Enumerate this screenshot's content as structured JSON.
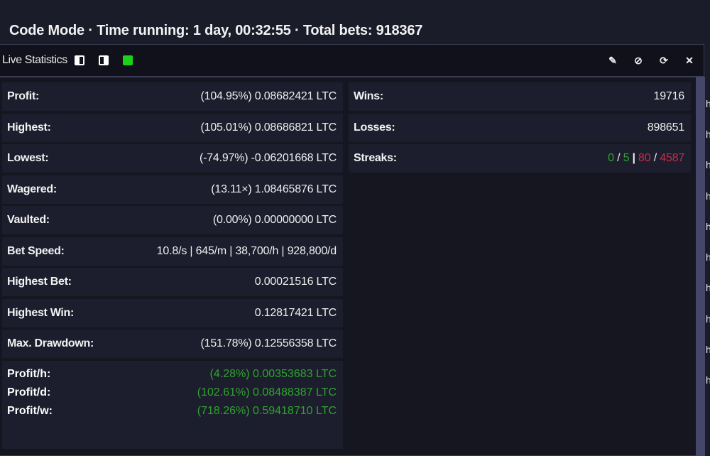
{
  "header": {
    "title": "Code Mode · Time running: 1 day, 00:32:55 · Total bets: 918367"
  },
  "panel": {
    "title": "Live Statistics",
    "icons": [
      "dock-left-icon",
      "dock-right-icon",
      "status-green-icon"
    ],
    "tools": [
      "edit-icon",
      "hide-icon",
      "refresh-icon",
      "close-icon"
    ],
    "accent_green": "#1bd21b"
  },
  "left_rows": [
    {
      "label": "Profit:",
      "value": "(104.95%) 0.08682421 LTC",
      "color": "green"
    },
    {
      "label": "Highest:",
      "value": "(105.01%) 0.08686821 LTC",
      "color": "green"
    },
    {
      "label": "Lowest:",
      "value": "(-74.97%) -0.06201668 LTC",
      "color": "red"
    },
    {
      "label": "Wagered:",
      "value": "(13.11×) 1.08465876 LTC",
      "color": "white"
    },
    {
      "label": "Vaulted:",
      "value": "(0.00%) 0.00000000 LTC",
      "color": "white"
    },
    {
      "label": "Bet Speed:",
      "value": "10.8/s | 645/m | 38,700/h | 928,800/d",
      "color": "white"
    },
    {
      "label": "Highest Bet:",
      "value": "0.00021516 LTC",
      "color": "white"
    },
    {
      "label": "Highest Win:",
      "value": "0.12817421 LTC",
      "color": "green"
    },
    {
      "label": "Max. Drawdown:",
      "value": "(151.78%) 0.12556358 LTC",
      "color": "red"
    }
  ],
  "profit_rates": [
    {
      "label": "Profit/h:",
      "value": "(4.28%) 0.00353683 LTC"
    },
    {
      "label": "Profit/d:",
      "value": "(102.61%) 0.08488387 LTC"
    },
    {
      "label": "Profit/w:",
      "value": "(718.26%) 0.59418710 LTC"
    }
  ],
  "right_rows": {
    "wins": {
      "label": "Wins:",
      "value": "19716"
    },
    "losses": {
      "label": "Losses:",
      "value": "898651"
    },
    "streaks": {
      "label": "Streaks:",
      "win_current": "0",
      "sep1": "/",
      "win_max": "5",
      "sep_mid": "|",
      "loss_current": "80",
      "sep2": "/",
      "loss_max": "4587"
    }
  },
  "side_letters": [
    "h",
    "h",
    "h",
    "h",
    "h",
    "h",
    "h",
    "h",
    "h",
    "h"
  ],
  "colors": {
    "green": "#2ea32e",
    "red": "#c22f4b"
  }
}
